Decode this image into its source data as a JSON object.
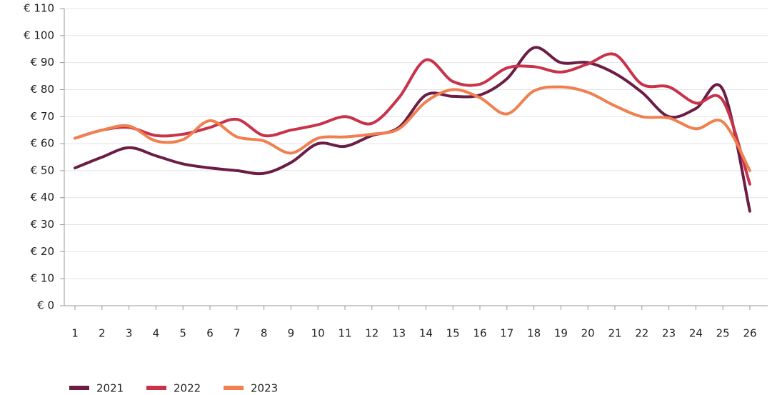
{
  "chart_data": {
    "type": "line",
    "categories": [
      "1",
      "2",
      "3",
      "4",
      "5",
      "6",
      "7",
      "8",
      "9",
      "10",
      "11",
      "12",
      "13",
      "14",
      "15",
      "16",
      "17",
      "18",
      "19",
      "20",
      "21",
      "22",
      "23",
      "24",
      "25",
      "26"
    ],
    "series": [
      {
        "name": "2021",
        "color": "#6b1d45",
        "values": [
          51,
          55,
          58.5,
          55.5,
          52.5,
          51,
          50,
          49,
          53,
          60,
          59,
          63,
          66,
          78,
          77.5,
          78,
          84,
          95.5,
          90,
          90,
          86,
          79,
          70,
          73,
          80,
          35
        ]
      },
      {
        "name": "2022",
        "color": "#c8334a",
        "values": [
          62,
          65,
          66,
          63,
          63.5,
          66,
          69,
          63,
          65,
          67,
          70,
          67.5,
          77,
          91,
          83,
          82,
          88,
          88.5,
          86.5,
          89.5,
          93,
          82,
          81,
          75,
          76,
          45
        ]
      },
      {
        "name": "2023",
        "color": "#f08050",
        "values": [
          62,
          65,
          66.5,
          61,
          61.5,
          68.5,
          62.5,
          61,
          56.5,
          62,
          62.5,
          63.5,
          65.5,
          75.5,
          80,
          77,
          71,
          79.5,
          81,
          79,
          74,
          70,
          69.5,
          65.5,
          68,
          50
        ]
      }
    ],
    "ylim": [
      0,
      110
    ],
    "yticks": [
      {
        "value": 0,
        "label": "€ 0"
      },
      {
        "value": 10,
        "label": "€ 10"
      },
      {
        "value": 20,
        "label": "€ 20"
      },
      {
        "value": 30,
        "label": "€ 30"
      },
      {
        "value": 40,
        "label": "€ 40"
      },
      {
        "value": 50,
        "label": "€ 50"
      },
      {
        "value": 60,
        "label": "€ 60"
      },
      {
        "value": 70,
        "label": "€ 70"
      },
      {
        "value": 80,
        "label": "€ 80"
      },
      {
        "value": 90,
        "label": "€ 90"
      },
      {
        "value": 100,
        "label": "€ 100"
      },
      {
        "value": 110,
        "label": "€ 110"
      }
    ],
    "grid": true,
    "legend": "bottom-left"
  }
}
